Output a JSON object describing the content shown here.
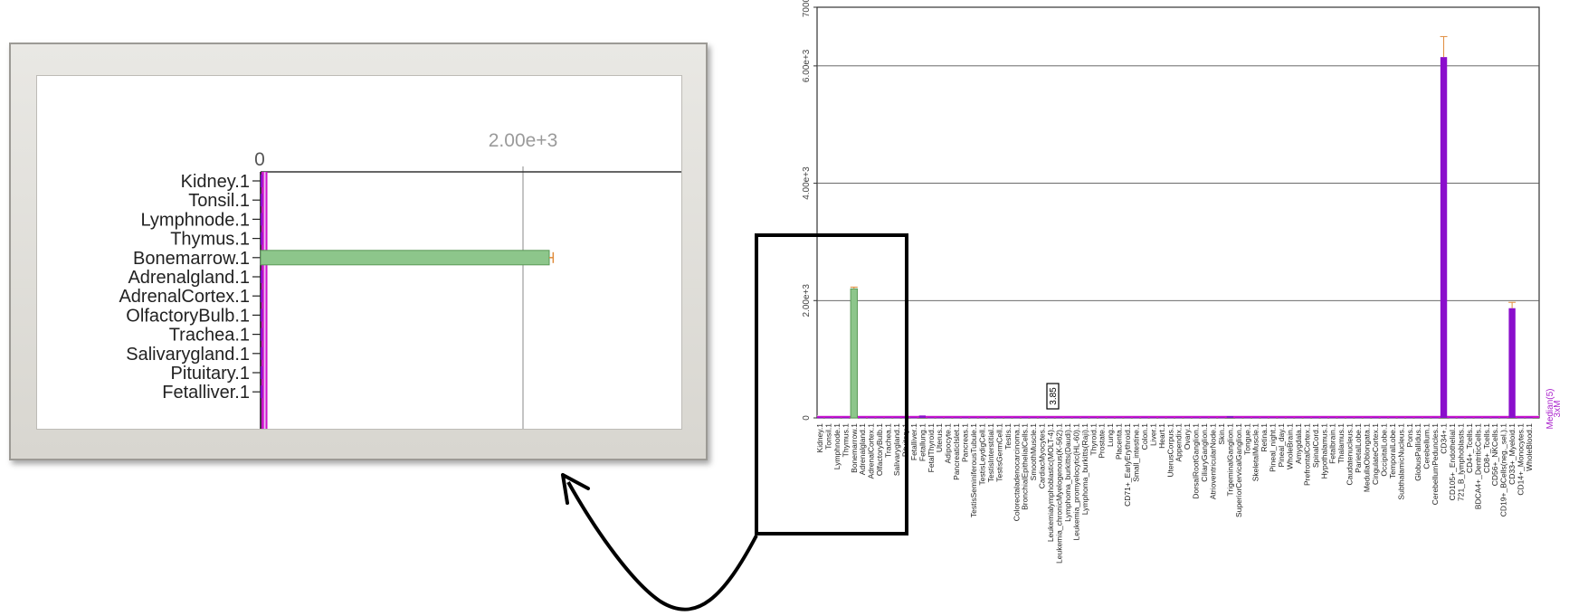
{
  "colors": {
    "bar_highlight": "#8dc68b",
    "bar_highlight_stroke": "#5a9a57",
    "bar_main": "#8b0fcc",
    "median_line": "#cc11cc",
    "median_band": "#e6b2ee",
    "error_bar": "#e08c3c",
    "grid": "#555555",
    "callout_box": "#000000"
  },
  "inset": {
    "tick_zero": "0",
    "tick_gridline": "2.00e+3",
    "tick_gridline_value": 2000,
    "categories": [
      "Kidney.1",
      "Tonsil.1",
      "Lymphnode.1",
      "Thymus.1",
      "Bonemarrow.1",
      "Adrenalgland.1",
      "AdrenalCortex.1",
      "OlfactoryBulb.1",
      "Trachea.1",
      "Salivarygland.1",
      "Pituitary.1",
      "Fetalliver.1"
    ]
  },
  "chart_data": {
    "type": "bar",
    "orientation": "vertical",
    "y_ticks": [
      "0",
      "2.00e+3",
      "4.00e+3",
      "6.00e+3",
      "7000"
    ],
    "y_tick_values": [
      0,
      2000,
      4000,
      6000,
      7000
    ],
    "ylim": [
      0,
      7000
    ],
    "grid": true,
    "annotation": "3.85",
    "legend": [
      "Median(5)",
      "3xM"
    ],
    "categories": [
      "Kidney.1",
      "Tonsil.1",
      "Lymphnode.1",
      "Thymus.1",
      "Bonemarrow.1",
      "Adrenalgland.1",
      "AdrenalCortex.1",
      "OlfactoryBulb.1",
      "Trachea.1",
      "Salivarygland.1",
      "Pituitary.1",
      "Fetalliver.1",
      "Fetallung.1",
      "FetalThyroid.1",
      "Uterus.1",
      "Adipocyte.1",
      "PancreaticIslet.1",
      "Pancreas.1",
      "TestisSeminiferousTubule.1",
      "TestisLeydigCell.1",
      "TestisInterstitial.1",
      "TestisGermCell.1",
      "Testis.1",
      "Colorectaladenocarcinoma.1",
      "BronchialEpithelialCells.1",
      "SmoothMuscle.1",
      "CardiacMyocytes.1",
      "Leukemialymphoblastic(MOLT-4).1",
      "Leukemia_chronicMyelogenous(K-562).1",
      "Lymphoma_burkitts(Daudi).1",
      "Leukemia_promyelocytic(HL-60).1",
      "Lymphoma_burkitts(Raji).1",
      "Thyroid.1",
      "Prostate.1",
      "Lung.1",
      "Placenta.1",
      "CD71+_EarlyErythroid.1",
      "Small_intestine.1",
      "Colon.1",
      "Liver.1",
      "Heart.1",
      "UterusCorpus.1",
      "Appendix.1",
      "Ovary.1",
      "DorsalRootGanglion.1",
      "CiliaryGanglion.1",
      "AtrioventricularNode.1",
      "Skin.1",
      "TrigeminalGanglion.1",
      "SuperiorCervicalGanglion.1",
      "Tongue.1",
      "SkeletalMuscle.1",
      "Retina.1",
      "Pineal_night.1",
      "Pineal_day.1",
      "WholeBrain.1",
      "Amygdala.1",
      "PrefrontalCortex.1",
      "SpinalCord.1",
      "Hypothalamus.1",
      "Fetalbrain.1",
      "Thalamus.1",
      "Caudatenucleus.1",
      "ParietalLobe.1",
      "MedullaOblongata.1",
      "CingulateCortex.1",
      "OccipitalLobe.1",
      "TemporalLobe.1",
      "SubthalamicNucleus.1",
      "Pons.1",
      "GlobusPallidus.1",
      "Cerebellum.1",
      "CerebellumPeduncles.1",
      "CD34+.1",
      "CD105+_Endothelial.1",
      "721_B_lymphoblasts.1",
      "CD4+_Tcells.1",
      "BDCA4+_DentriticCells.1",
      "CD8+_Tcells.1",
      "CD56+_NKCells.1",
      "CD19+_BCells(neg._sel.).1",
      "CD33+_Myeloid.1",
      "CD14+_Monocytes.1",
      "WholeBlood.1"
    ],
    "series": [
      {
        "values": [
          10,
          10,
          10,
          10,
          2200,
          10,
          10,
          10,
          10,
          10,
          10,
          10,
          40,
          10,
          10,
          10,
          10,
          10,
          10,
          10,
          10,
          10,
          10,
          10,
          10,
          10,
          10,
          10,
          10,
          10,
          10,
          10,
          10,
          10,
          10,
          10,
          10,
          10,
          10,
          10,
          10,
          10,
          10,
          10,
          10,
          10,
          10,
          10,
          30,
          10,
          10,
          10,
          10,
          10,
          10,
          10,
          10,
          10,
          10,
          10,
          10,
          10,
          10,
          10,
          10,
          10,
          10,
          10,
          10,
          10,
          10,
          10,
          10,
          6150,
          10,
          10,
          10,
          10,
          10,
          10,
          10,
          1870,
          10,
          10
        ],
        "errors": [
          0,
          0,
          0,
          0,
          30,
          0,
          0,
          0,
          0,
          0,
          0,
          0,
          0,
          0,
          0,
          0,
          0,
          0,
          0,
          0,
          0,
          0,
          0,
          0,
          0,
          0,
          0,
          0,
          0,
          0,
          0,
          0,
          0,
          0,
          0,
          0,
          0,
          0,
          0,
          0,
          0,
          0,
          0,
          0,
          0,
          0,
          0,
          0,
          0,
          0,
          0,
          0,
          0,
          0,
          0,
          0,
          0,
          0,
          0,
          0,
          0,
          0,
          0,
          0,
          0,
          0,
          0,
          0,
          0,
          0,
          0,
          0,
          0,
          350,
          0,
          0,
          0,
          0,
          0,
          0,
          0,
          100,
          0,
          0
        ]
      }
    ],
    "highlight_category": "Bonemarrow.1",
    "median_value": 15,
    "median_band": [
      0,
      45
    ]
  }
}
